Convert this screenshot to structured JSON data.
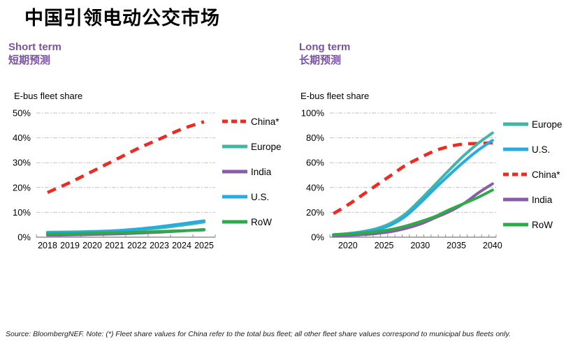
{
  "header": {
    "title": "中国引领电动公交市场"
  },
  "footer": {
    "source_note": "Source: BloombergNEF. Note: (*) Fleet share values for China refer to the total bus fleet; all other fleet share values correspond to municipal bus fleets only."
  },
  "colors": {
    "china": "#ee2b21",
    "europe": "#41b6a6",
    "us": "#29abe2",
    "india": "#8a5ba7",
    "row": "#2dab49",
    "heading_purple": "#7a52a3",
    "grid": "#c2c2c2",
    "axis": "#8f8f8f",
    "text": "#000000"
  },
  "chart_data": [
    {
      "type": "line",
      "subtitle_en": "Short term",
      "subtitle_zh": "短期预测",
      "axis_label": "E-bus fleet share",
      "x_range": [
        2018,
        2025
      ],
      "x": [
        2018,
        2019,
        2020,
        2021,
        2022,
        2023,
        2024,
        2025
      ],
      "x_labels": [
        2018,
        2019,
        2020,
        2021,
        2022,
        2023,
        2024,
        2025
      ],
      "ylim": [
        0,
        50
      ],
      "y_ticks": [
        0,
        10,
        20,
        30,
        40,
        50
      ],
      "y_tick_suffix": "%",
      "grid": true,
      "legend_position": "right",
      "series": [
        {
          "name": "China*",
          "color_key": "china",
          "dashed": true,
          "values": [
            18,
            22,
            26.5,
            31,
            35.5,
            39.5,
            43.5,
            46.5
          ]
        },
        {
          "name": "Europe",
          "color_key": "europe",
          "dashed": false,
          "values": [
            2.0,
            2.1,
            2.3,
            2.6,
            3.0,
            3.7,
            4.8,
            6.1
          ]
        },
        {
          "name": "India",
          "color_key": "india",
          "dashed": false,
          "values": [
            0.8,
            0.9,
            1.1,
            1.3,
            1.6,
            2.0,
            2.5,
            3.1
          ]
        },
        {
          "name": "U.S.",
          "color_key": "us",
          "dashed": false,
          "values": [
            1.7,
            1.9,
            2.2,
            2.6,
            3.3,
            4.2,
            5.4,
            6.6
          ]
        },
        {
          "name": "RoW",
          "color_key": "row",
          "dashed": false,
          "values": [
            1.3,
            1.4,
            1.6,
            1.8,
            2.0,
            2.3,
            2.6,
            2.9
          ]
        }
      ],
      "draw_order": [
        0,
        1,
        2,
        3,
        4
      ]
    },
    {
      "type": "line",
      "subtitle_en": "Long term",
      "subtitle_zh": "长期预测",
      "axis_label": "E-bus fleet share",
      "x_range": [
        2018,
        2040
      ],
      "x": [
        2018,
        2020,
        2022,
        2024,
        2026,
        2028,
        2030,
        2032,
        2034,
        2036,
        2038,
        2040
      ],
      "x_labels": [
        2020,
        2025,
        2030,
        2035,
        2040
      ],
      "ylim": [
        0,
        100
      ],
      "y_ticks": [
        0,
        20,
        40,
        60,
        80,
        100
      ],
      "y_tick_suffix": "%",
      "grid": true,
      "legend_position": "right",
      "series": [
        {
          "name": "Europe",
          "color_key": "europe",
          "dashed": false,
          "values": [
            2,
            3,
            4.5,
            7,
            11.5,
            19,
            30,
            42,
            54,
            65.5,
            75.5,
            84
          ]
        },
        {
          "name": "U.S.",
          "color_key": "us",
          "dashed": false,
          "values": [
            2,
            2.8,
            4,
            6,
            10,
            17,
            27.5,
            39,
            50,
            60.5,
            70,
            78
          ]
        },
        {
          "name": "China*",
          "color_key": "china",
          "dashed": true,
          "values": [
            19,
            26,
            34,
            42,
            50,
            58,
            64,
            69.5,
            73,
            75,
            75.5,
            76
          ]
        },
        {
          "name": "India",
          "color_key": "india",
          "dashed": false,
          "values": [
            1,
            1.4,
            2,
            3,
            4.5,
            7,
            10.5,
            15.5,
            20.5,
            27,
            35.5,
            43
          ]
        },
        {
          "name": "RoW",
          "color_key": "row",
          "dashed": false,
          "values": [
            2,
            2.5,
            3.3,
            4.5,
            6.3,
            9,
            12.5,
            16.5,
            22,
            27,
            32,
            38
          ]
        }
      ],
      "draw_order": [
        2,
        0,
        3,
        1,
        4
      ]
    }
  ]
}
